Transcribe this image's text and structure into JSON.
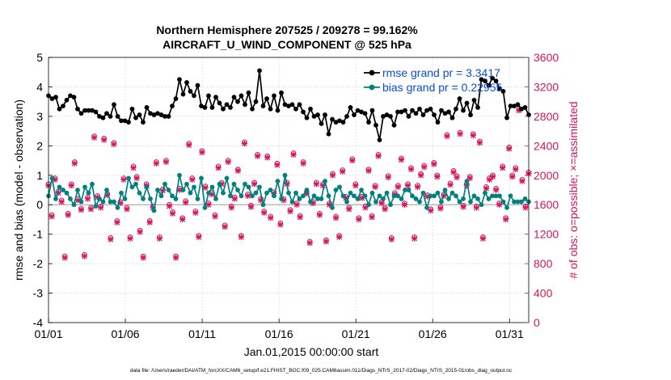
{
  "chart_data": {
    "type": "line",
    "title": "Northern Hemisphere 207525 / 209278 = 99.162%",
    "subtitle": "AIRCRAFT_U_WIND_COMPONENT @ 525 hPa",
    "xlabel": "Jan.01,2015 00:00:00 start",
    "ylabel": "rmse and bias (model - observation)",
    "ylabel_right": "# of obs: o=possible; ×=assimilated",
    "footnote": "data file: /Users/raeder/DAI/ATM_forcXX/CAM6_setup/f.e21.FHIST_BGC.f09_025.CAM6assim.011/Diags_NTrS_2017-02/Diags_NTrS_2015-01/obs_diag_output.nc",
    "xlim": [
      0,
      31.25
    ],
    "ylim": [
      -4,
      5
    ],
    "ylim_right": [
      0,
      3600
    ],
    "grid": true,
    "legend_position": "top-right",
    "x_ticks": [
      {
        "value": 0,
        "label": "01/01"
      },
      {
        "value": 5,
        "label": "01/06"
      },
      {
        "value": 10,
        "label": "01/11"
      },
      {
        "value": 15,
        "label": "01/16"
      },
      {
        "value": 20,
        "label": "01/21"
      },
      {
        "value": 25,
        "label": "01/26"
      },
      {
        "value": 30,
        "label": "01/31"
      }
    ],
    "y_ticks": [
      "-4",
      "-3",
      "-2",
      "-1",
      "0",
      "1",
      "2",
      "3",
      "4",
      "5"
    ],
    "y_ticks_right": [
      "0",
      "400",
      "800",
      "1200",
      "1600",
      "2000",
      "2400",
      "2800",
      "3200",
      "3600"
    ],
    "colors": {
      "rmse": "#000000",
      "bias": "#008080",
      "obs": "#d6145a",
      "zero_line": "#bbbbbb",
      "legend_text": "#0b4cd6"
    },
    "series": [
      {
        "name": "rmse grand pr = 3.3417",
        "axis": "left",
        "values": [
          3.7,
          3.6,
          3.65,
          3.25,
          3.35,
          3.55,
          3.7,
          3.65,
          3.25,
          3.1,
          3.2,
          3.2,
          3.2,
          3.15,
          3.0,
          2.95,
          3.1,
          3.0,
          3.4,
          3.0,
          2.85,
          2.85,
          2.8,
          3.25,
          2.95,
          3.05,
          2.8,
          3.3,
          3.1,
          3.05,
          3.1,
          3.05,
          3.0,
          3.0,
          3.35,
          3.6,
          4.25,
          3.75,
          4.15,
          3.85,
          3.7,
          4.05,
          3.35,
          3.3,
          3.7,
          3.3,
          3.65,
          3.45,
          3.25,
          3.4,
          3.3,
          3.65,
          3.5,
          3.7,
          3.4,
          3.8,
          3.25,
          3.5,
          4.55,
          3.35,
          3.6,
          3.25,
          3.7,
          3.2,
          3.8,
          3.4,
          3.35,
          3.4,
          3.25,
          3.4,
          3.15,
          2.95,
          3.25,
          3.0,
          3.05,
          2.75,
          3.05,
          2.4,
          2.9,
          2.8,
          2.85,
          2.8,
          3.0,
          3.3,
          3.05,
          3.2,
          3.15,
          3.1,
          2.8,
          3.2,
          2.7,
          2.2,
          3.0,
          3.05,
          3.0,
          2.7,
          3.15,
          3.15,
          3.2,
          3.0,
          3.2,
          3.1,
          3.25,
          3.05,
          3.2,
          3.25,
          3.05,
          2.8,
          3.2,
          3.1,
          3.15,
          2.95,
          3.25,
          3.6,
          3.2,
          3.45,
          3.05,
          3.55,
          3.3,
          4.25,
          4.2,
          4.05,
          4.3,
          4.2,
          3.95,
          3.85,
          2.95,
          3.35,
          3.35,
          3.4,
          3.25,
          3.3,
          3.05
        ]
      },
      {
        "name": "bias grand pr = 0.22955",
        "axis": "left",
        "values": [
          0.3,
          0.9,
          0.2,
          0.6,
          0.5,
          0.4,
          0.2,
          0.0,
          0.5,
          0.1,
          0.6,
          0.4,
          0.7,
          -0.05,
          0.2,
          0.1,
          0.5,
          0.1,
          0.1,
          -0.1,
          0.4,
          0.2,
          0.9,
          0.6,
          0.7,
          0.4,
          0.2,
          0.6,
          0.2,
          -0.2,
          0.5,
          0.3,
          0.7,
          0.5,
          0.3,
          0.2,
          1.0,
          0.5,
          0.7,
          0.4,
          0.6,
          0.2,
          0.9,
          -0.1,
          0.4,
          0.6,
          0.2,
          0.7,
          0.4,
          0.9,
          0.3,
          0.7,
          0.5,
          0.3,
          0.7,
          0.6,
          0.3,
          0.4,
          0.6,
          0.0,
          0.4,
          0.5,
          0.3,
          0.8,
          0.2,
          1.0,
          0.4,
          0.1,
          0.4,
          0.2,
          0.3,
          0.5,
          0.1,
          0.3,
          0.2,
          0.2,
          0.8,
          0.3,
          -0.1,
          0.5,
          0.6,
          0.3,
          0.1,
          0.4,
          0.3,
          0.2,
          0.5,
          0.3,
          0.0,
          0.4,
          0.1,
          0.3,
          0.2,
          0.4,
          0.0,
          0.3,
          0.3,
          0.2,
          0.5,
          0.5,
          0.3,
          0.2,
          0.1,
          0.4,
          -0.1,
          0.3,
          0.3,
          0.4,
          0.1,
          0.5,
          0.2,
          0.4,
          0.3,
          0.1,
          0.2,
          0.8,
          0.1,
          0.3,
          0.2,
          0.0,
          0.4,
          0.2,
          0.3,
          0.3,
          0.3,
          0.1,
          -0.1,
          0.3,
          0.1,
          0.1,
          0.1,
          0.2,
          0.1
        ]
      },
      {
        "name": "possible",
        "axis": "right",
        "marker": "o",
        "values": [
          1880,
          1460,
          1960,
          1780,
          1660,
          900,
          1480,
          1880,
          2180,
          1680,
          1550,
          920,
          1700,
          1560,
          2530,
          1720,
          1580,
          2500,
          1750,
          1150,
          2440,
          1380,
          1640,
          1960,
          1560,
          1160,
          2120,
          1980,
          1250,
          900,
          1880,
          1380,
          1580,
          2180,
          1160,
          1810,
          2200,
          1600,
          1500,
          900,
          1820,
          1420,
          1650,
          2430,
          1960,
          1510,
          1180,
          2330,
          1850,
          1620,
          1760,
          1460,
          2120,
          1900,
          1320,
          2200,
          1580,
          1700,
          2080,
          1180,
          2450,
          1740,
          1590,
          1900,
          2280,
          1680,
          1510,
          2260,
          1440,
          1770,
          2160,
          1350,
          1680,
          1900,
          1530,
          2300,
          1620,
          1450,
          2180,
          1770,
          1100,
          1640,
          1900,
          1480,
          1880,
          1120,
          1620,
          2020,
          1440,
          1180,
          2070,
          1710,
          1560,
          2220,
          1880,
          1420,
          1710,
          1580,
          2080,
          1450,
          1860,
          2280,
          1640,
          1560,
          1990,
          1150,
          1760,
          1860,
          2230,
          1620,
          1880,
          2100,
          1160,
          1860,
          2020,
          2130,
          1730,
          1540,
          2170,
          2000,
          1570,
          1740,
          2550,
          1890,
          2060,
          1990,
          2580,
          1590,
          1880,
          1980,
          2560,
          1580,
          2460,
          1160,
          1840,
          1960,
          2000,
          1820,
          1620,
          2120,
          1420,
          2380,
          2000,
          2100,
          2900,
          1940,
          1580,
          2040
        ]
      },
      {
        "name": "assimilated",
        "axis": "right",
        "marker": "x",
        "values": [
          1860,
          1440,
          1940,
          1760,
          1640,
          880,
          1460,
          1860,
          2160,
          1660,
          1530,
          900,
          1680,
          1540,
          2510,
          1700,
          1560,
          2480,
          1730,
          1130,
          2420,
          1360,
          1620,
          1940,
          1540,
          1140,
          2100,
          1960,
          1230,
          880,
          1860,
          1360,
          1560,
          2160,
          1140,
          1790,
          2180,
          1580,
          1480,
          880,
          1800,
          1400,
          1630,
          2410,
          1940,
          1490,
          1160,
          2310,
          1830,
          1600,
          1740,
          1440,
          2100,
          1880,
          1300,
          2180,
          1560,
          1680,
          2060,
          1160,
          2430,
          1720,
          1570,
          1880,
          2260,
          1660,
          1490,
          2240,
          1420,
          1750,
          2140,
          1330,
          1660,
          1880,
          1510,
          2280,
          1600,
          1430,
          2160,
          1750,
          1080,
          1620,
          1880,
          1460,
          1860,
          1100,
          1600,
          2000,
          1420,
          1160,
          2050,
          1690,
          1540,
          2200,
          1860,
          1400,
          1690,
          1560,
          2060,
          1430,
          1840,
          2260,
          1620,
          1540,
          1970,
          1130,
          1740,
          1840,
          2210,
          1600,
          1860,
          2080,
          1140,
          1840,
          2000,
          2110,
          1710,
          1520,
          2150,
          1980,
          1550,
          1720,
          2530,
          1870,
          2040,
          1970,
          2560,
          1570,
          1860,
          1960,
          2540,
          1560,
          2440,
          1140,
          1820,
          1940,
          1980,
          1800,
          1600,
          2100,
          1400,
          2360,
          1980,
          2080,
          2880,
          1920,
          1560,
          2020
        ]
      }
    ]
  }
}
